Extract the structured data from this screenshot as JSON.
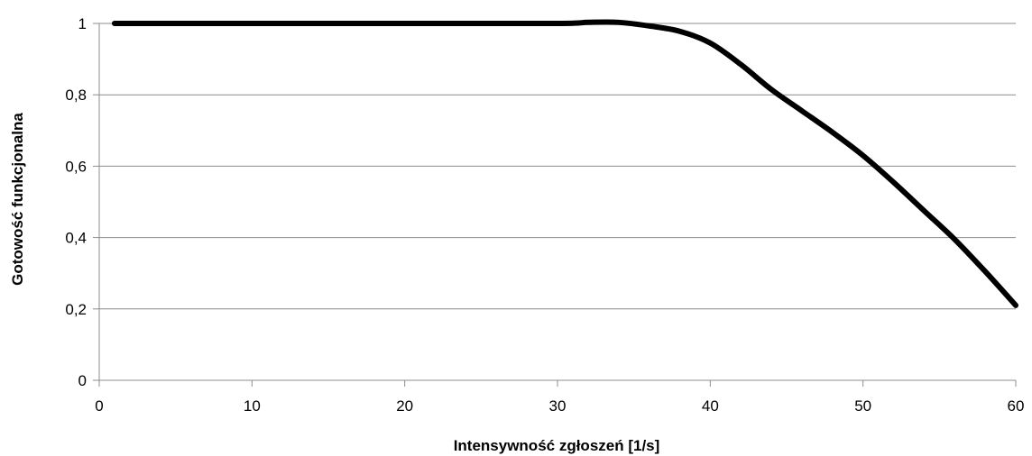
{
  "chart_data": {
    "type": "line",
    "xlabel": "Intensywność zgłoszeń [1/s]",
    "ylabel": "Gotowość funkcjonalna",
    "xlim": [
      0,
      60
    ],
    "ylim": [
      0,
      1
    ],
    "x_ticks": [
      "0",
      "10",
      "20",
      "30",
      "40",
      "50",
      "60"
    ],
    "y_ticks": [
      "0",
      "0,2",
      "0,4",
      "0,6",
      "0,8",
      "1"
    ],
    "grid": "horizontal",
    "legend": "none",
    "colors": {
      "series": "#000000",
      "grid": "#8c8c8c"
    },
    "series": [
      {
        "x": [
          1,
          10,
          20,
          30,
          32,
          34,
          36,
          38,
          40,
          42,
          44,
          46,
          48,
          50,
          52,
          54,
          56,
          58,
          60
        ],
        "y": [
          1.0,
          1.0,
          1.0,
          1.0,
          1.003,
          1.003,
          0.993,
          0.978,
          0.945,
          0.885,
          0.815,
          0.755,
          0.695,
          0.63,
          0.555,
          0.475,
          0.395,
          0.305,
          0.21
        ]
      }
    ]
  }
}
